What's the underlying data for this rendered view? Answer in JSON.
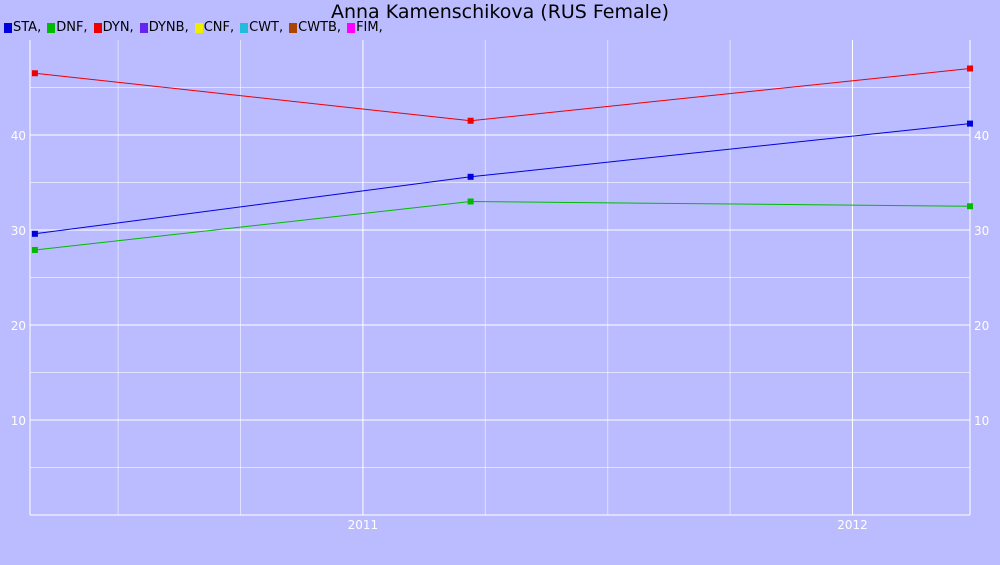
{
  "title": "Anna Kamenschikova (RUS Female)",
  "legend": [
    {
      "label": "STA,",
      "color": "#0000dd"
    },
    {
      "label": "DNF,",
      "color": "#00bb00"
    },
    {
      "label": "DYN,",
      "color": "#ee0000"
    },
    {
      "label": "DYNB,",
      "color": "#6622ee"
    },
    {
      "label": "CNF,",
      "color": "#eeee00"
    },
    {
      "label": "CWT,",
      "color": "#22bbdd"
    },
    {
      "label": "CWTB,",
      "color": "#aa4400"
    },
    {
      "label": "FIM,",
      "color": "#ff00ff"
    }
  ],
  "chart_data": {
    "type": "line",
    "title": "Anna Kamenschikova (RUS Female)",
    "xlabel": "",
    "ylabel": "",
    "x_ticks": [
      "2011",
      "2012"
    ],
    "x_tick_values": [
      2011.0,
      2012.0
    ],
    "xlim": [
      2010.32,
      2012.24
    ],
    "y_ticks": [
      10,
      20,
      30,
      40
    ],
    "ylim": [
      0,
      50
    ],
    "grid": true,
    "legend_position": "top-left",
    "series": [
      {
        "name": "STA",
        "color": "#0000dd",
        "x": [
          2010.33,
          2011.22,
          2012.24
        ],
        "y": [
          29.6,
          35.6,
          41.2
        ]
      },
      {
        "name": "DNF",
        "color": "#00bb00",
        "x": [
          2010.33,
          2011.22,
          2012.24
        ],
        "y": [
          27.9,
          33.0,
          32.5
        ]
      },
      {
        "name": "DYN",
        "color": "#ee0000",
        "x": [
          2010.33,
          2011.22,
          2012.24
        ],
        "y": [
          46.5,
          41.5,
          47.0
        ]
      }
    ]
  }
}
